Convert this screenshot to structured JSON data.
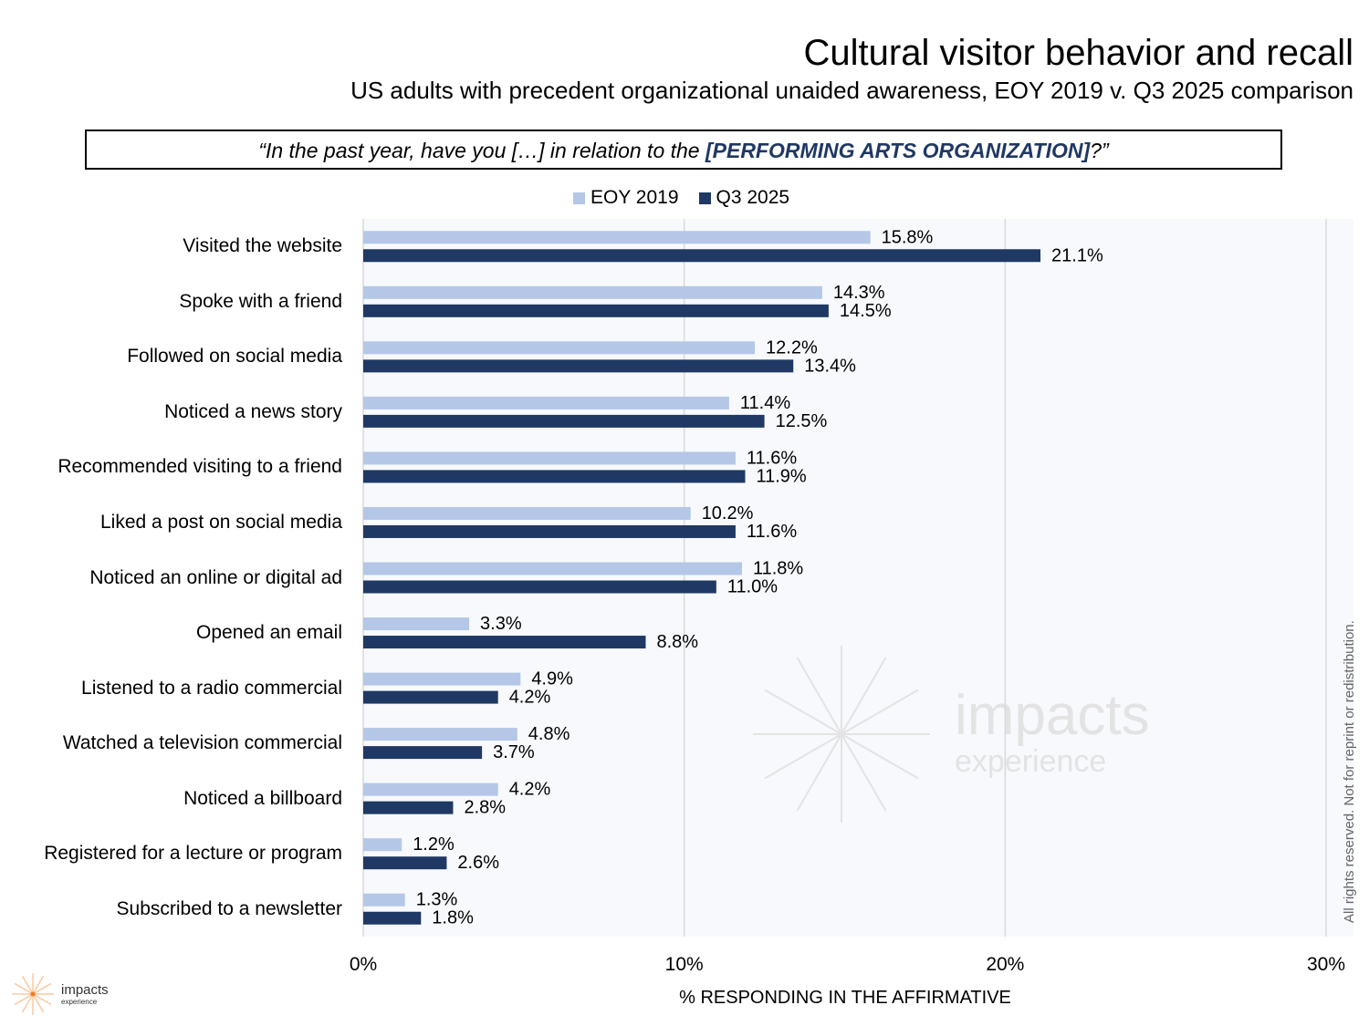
{
  "title": "Cultural visitor behavior and recall",
  "subtitle": "US adults with precedent organizational unaided awareness, EOY 2019 v. Q3 2025 comparison",
  "question": {
    "prefix": "“In the past year, have you […] in relation to the ",
    "highlight": "[PERFORMING ARTS ORGANIZATION]",
    "suffix": "?”"
  },
  "colors": {
    "eoy2019": "#b4c7e7",
    "q32025": "#1f3864",
    "plot_bg": "#f7f9fc",
    "grid": "#d9d9d9",
    "accent": "#1f3864"
  },
  "watermark": {
    "line1": "impacts",
    "line2": "experience"
  },
  "logo": {
    "line1": "impacts",
    "line2": "experience"
  },
  "rights_text": "All rights reserved. Not for reprint or redistribution.",
  "chart_data": {
    "type": "bar",
    "orientation": "horizontal",
    "categories": [
      "Visited the website",
      "Spoke with a friend",
      "Followed on social media",
      "Noticed a news story",
      "Recommended visiting to a friend",
      "Liked a post on social media",
      "Noticed an online or digital ad",
      "Opened an email",
      "Listened to a radio commercial",
      "Watched a television commercial",
      "Noticed a billboard",
      "Registered for a lecture or program",
      "Subscribed to a newsletter"
    ],
    "series": [
      {
        "name": "EOY 2019",
        "values": [
          15.8,
          14.3,
          12.2,
          11.4,
          11.6,
          10.2,
          11.8,
          3.3,
          4.9,
          4.8,
          4.2,
          1.2,
          1.3
        ]
      },
      {
        "name": "Q3 2025",
        "values": [
          21.1,
          14.5,
          13.4,
          12.5,
          11.9,
          11.6,
          11.0,
          8.8,
          4.2,
          3.7,
          2.8,
          2.6,
          1.8
        ]
      }
    ],
    "xlabel": "% RESPONDING IN THE AFFIRMATIVE",
    "xlim": [
      0,
      30
    ],
    "xticks": [
      "0%",
      "10%",
      "20%",
      "30%"
    ],
    "grid": true,
    "legend": "top"
  }
}
